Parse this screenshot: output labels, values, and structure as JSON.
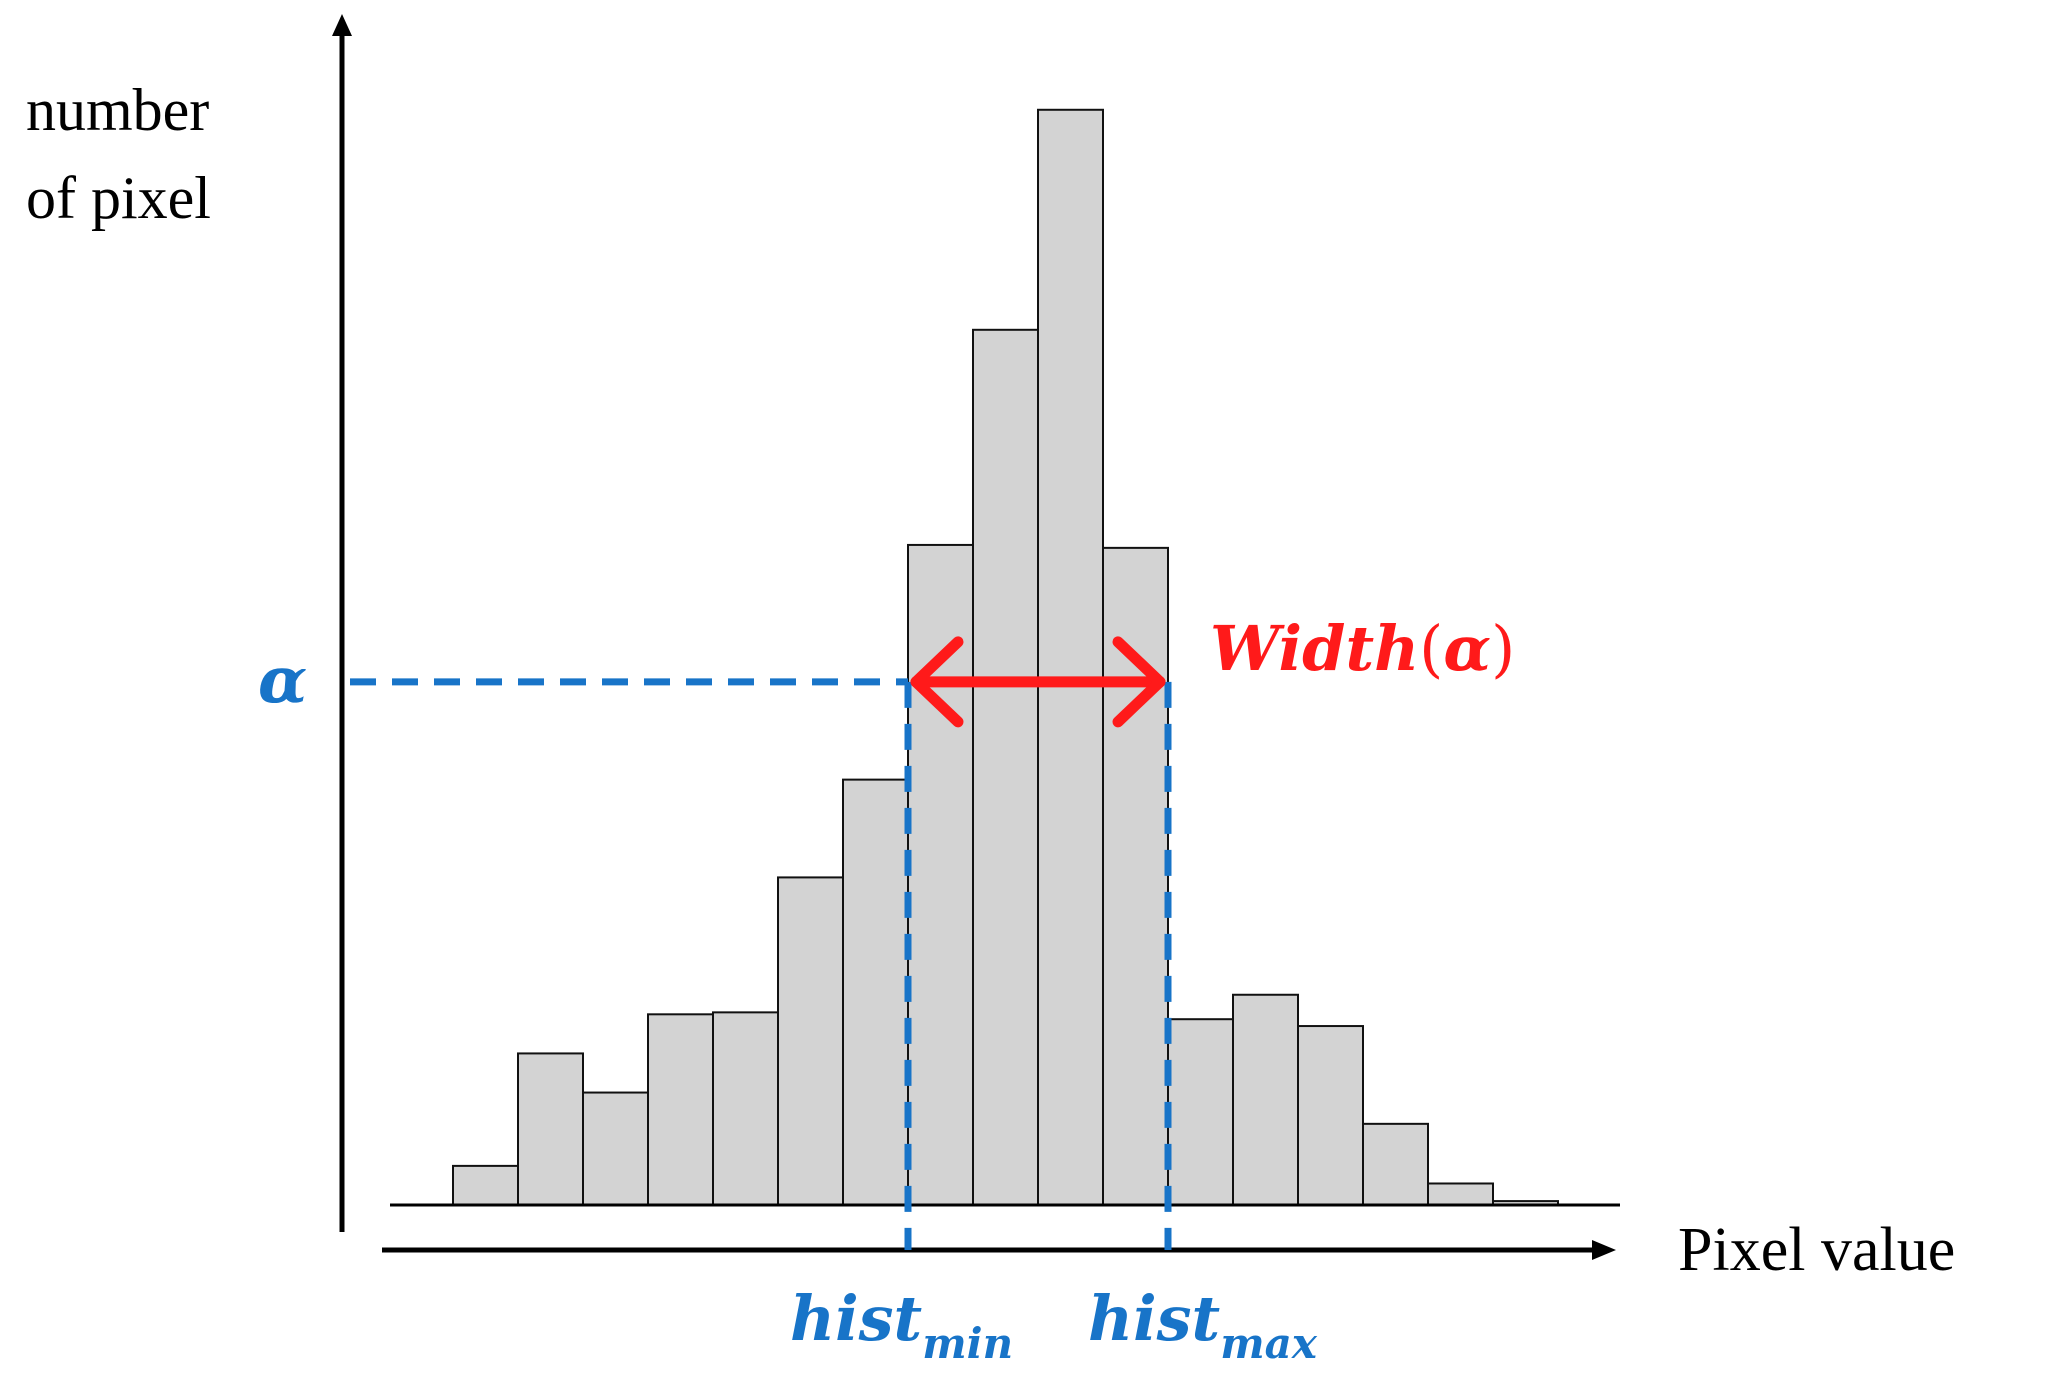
{
  "chart_data": {
    "type": "bar",
    "title": "",
    "ylabel_line1": "number",
    "ylabel_line2": "of pixel",
    "xlabel": "Pixel value",
    "bins": 17,
    "values": [
      40,
      155,
      115,
      195,
      197,
      335,
      435,
      675,
      895,
      1120,
      672,
      190,
      215,
      183,
      83,
      22,
      4
    ],
    "ylim": [
      0,
      1130
    ],
    "grid": false,
    "legend": "none",
    "bar_fill": "#d3d3d3",
    "bar_stroke": "#111111",
    "alpha": {
      "value": 535,
      "symbol": "α",
      "color": "#1874c8"
    },
    "width_annotation": {
      "text_main": "Width",
      "text_paren_open": "(",
      "text_symbol": "α",
      "text_paren_close": ")",
      "color": "#ff1a1a",
      "from_bin_edge": 7,
      "to_bin_edge": 11
    },
    "hist_min": {
      "base": "hist",
      "sub": "min",
      "bin_edge": 7,
      "color": "#1874c8"
    },
    "hist_max": {
      "base": "hist",
      "sub": "max",
      "bin_edge": 11,
      "color": "#1874c8"
    }
  }
}
